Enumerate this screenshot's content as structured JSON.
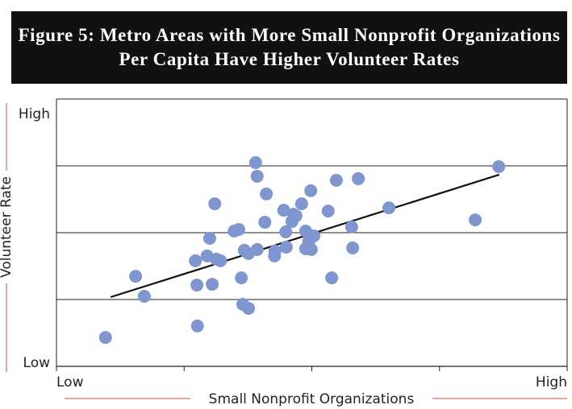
{
  "chart_data": {
    "type": "scatter",
    "title": "Figure 5: Metro Areas with More Small Nonprofit Organizations Per Capita Have Higher Volunteer Rates",
    "x_label": "Small Nonprofit Organizations",
    "y_label": "Volunteer Rate",
    "xlim": [
      0,
      100
    ],
    "ylim": [
      0,
      100
    ],
    "xticks": [
      {
        "value": 0,
        "label": "Low"
      },
      {
        "value": 25,
        "label": null
      },
      {
        "value": 50,
        "label": null
      },
      {
        "value": 75,
        "label": null
      },
      {
        "value": 100,
        "label": "High"
      }
    ],
    "yticks": [
      {
        "value": 0,
        "label": "Low"
      },
      {
        "value": 25,
        "label": null
      },
      {
        "value": 50,
        "label": null
      },
      {
        "value": 75,
        "label": null
      },
      {
        "value": 100,
        "label": "High"
      }
    ],
    "grid": true,
    "color": "#7f96d0",
    "x": [
      9.6,
      15.5,
      17.2,
      27.6,
      27.5,
      27.2,
      30.5,
      29.5,
      30.0,
      31.0,
      31.3,
      32.1,
      34.8,
      35.7,
      36.2,
      36.5,
      36.8,
      37.6,
      37.6,
      39.0,
      39.3,
      39.3,
      41.1,
      40.8,
      42.7,
      42.8,
      44.5,
      44.9,
      45.0,
      46.1,
      46.4,
      46.9,
      48.0,
      48.8,
      48.8,
      49.4,
      49.6,
      49.8,
      49.9,
      50.4,
      53.2,
      53.9,
      54.8,
      57.8,
      58.0,
      59.1,
      65.1,
      82.0,
      86.6
    ],
    "y": [
      10.8,
      33.7,
      26.2,
      15.1,
      30.4,
      39.5,
      30.7,
      41.3,
      47.9,
      60.8,
      40.1,
      39.5,
      50.6,
      51.2,
      33.1,
      23.2,
      43.4,
      21.7,
      42.2,
      76.2,
      71.1,
      43.7,
      64.5,
      53.9,
      41.3,
      43.1,
      58.4,
      50.3,
      44.6,
      54.2,
      56.9,
      56.3,
      60.8,
      50.6,
      44.0,
      46.7,
      48.2,
      65.7,
      43.7,
      48.8,
      58.1,
      33.1,
      69.6,
      52.1,
      44.3,
      70.2,
      59.3,
      54.8,
      74.7
    ],
    "trendline": {
      "x": [
        10.6,
        86.7
      ],
      "y": [
        25.9,
        71.7
      ],
      "color": "#111111"
    }
  }
}
